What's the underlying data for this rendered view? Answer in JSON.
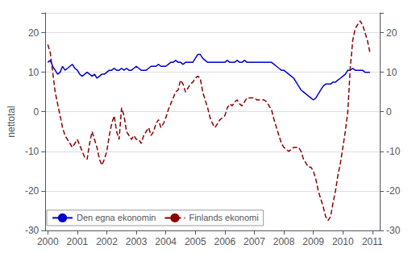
{
  "chart_data": {
    "type": "line",
    "ylabel": "nettotal",
    "xlim": [
      1999.917,
      2011.25
    ],
    "xticks": [
      2000,
      2001,
      2002,
      2003,
      2004,
      2005,
      2006,
      2007,
      2008,
      2009,
      2010,
      2011
    ],
    "ylim": [
      -30,
      25
    ],
    "yticks": [
      -30,
      -20,
      -10,
      0,
      10,
      20
    ],
    "y2lim": [
      -30,
      25
    ],
    "y2ticks": [
      -30,
      -20,
      -10,
      0,
      10,
      20
    ],
    "grid": true,
    "legend": "lower left",
    "x": [
      2000.0,
      2000.083,
      2000.167,
      2000.25,
      2000.333,
      2000.417,
      2000.5,
      2000.583,
      2000.667,
      2000.75,
      2000.833,
      2000.917,
      2001.0,
      2001.083,
      2001.167,
      2001.25,
      2001.333,
      2001.417,
      2001.5,
      2001.583,
      2001.667,
      2001.75,
      2001.833,
      2001.917,
      2002.0,
      2002.083,
      2002.167,
      2002.25,
      2002.333,
      2002.417,
      2002.5,
      2002.583,
      2002.667,
      2002.75,
      2002.833,
      2002.917,
      2003.0,
      2003.083,
      2003.167,
      2003.25,
      2003.333,
      2003.417,
      2003.5,
      2003.583,
      2003.667,
      2003.75,
      2003.833,
      2003.917,
      2004.0,
      2004.083,
      2004.167,
      2004.25,
      2004.333,
      2004.417,
      2004.5,
      2004.583,
      2004.667,
      2004.75,
      2004.833,
      2004.917,
      2005.0,
      2005.083,
      2005.167,
      2005.25,
      2005.333,
      2005.417,
      2005.5,
      2005.583,
      2005.667,
      2005.75,
      2005.833,
      2005.917,
      2006.0,
      2006.083,
      2006.167,
      2006.25,
      2006.333,
      2006.417,
      2006.5,
      2006.583,
      2006.667,
      2006.75,
      2006.833,
      2006.917,
      2007.0,
      2007.083,
      2007.167,
      2007.25,
      2007.333,
      2007.417,
      2007.5,
      2007.583,
      2007.667,
      2007.75,
      2007.833,
      2007.917,
      2008.0,
      2008.083,
      2008.167,
      2008.25,
      2008.333,
      2008.417,
      2008.5,
      2008.583,
      2008.667,
      2008.75,
      2008.833,
      2008.917,
      2009.0,
      2009.083,
      2009.167,
      2009.25,
      2009.333,
      2009.417,
      2009.5,
      2009.583,
      2009.667,
      2009.75,
      2009.833,
      2009.917,
      2010.0,
      2010.083,
      2010.167,
      2010.25,
      2010.333,
      2010.417,
      2010.5,
      2010.583,
      2010.667,
      2010.75,
      2010.833,
      2010.917
    ],
    "series": [
      {
        "name": "Den egna ekonomin",
        "color": "#0000cc",
        "line_style": "solid",
        "values": [
          12.5,
          13.0,
          11.5,
          10.5,
          9.5,
          10.0,
          11.5,
          10.5,
          11.0,
          11.5,
          12.0,
          11.0,
          10.5,
          9.5,
          9.0,
          9.5,
          10.0,
          9.5,
          9.0,
          9.5,
          8.5,
          9.0,
          9.5,
          9.5,
          10.0,
          10.5,
          10.5,
          11.0,
          10.5,
          10.5,
          11.0,
          10.5,
          11.0,
          10.5,
          10.5,
          11.0,
          11.5,
          11.0,
          10.5,
          10.5,
          10.5,
          11.0,
          11.5,
          11.5,
          11.5,
          12.0,
          11.5,
          11.5,
          11.5,
          12.0,
          12.5,
          12.5,
          13.0,
          12.5,
          12.5,
          12.0,
          12.5,
          12.5,
          12.5,
          12.5,
          13.5,
          14.5,
          14.5,
          13.5,
          13.0,
          12.5,
          12.5,
          12.5,
          12.5,
          12.5,
          12.5,
          12.5,
          12.5,
          13.0,
          12.5,
          12.5,
          12.5,
          13.0,
          12.5,
          12.5,
          13.0,
          12.5,
          12.5,
          12.5,
          12.5,
          12.5,
          12.5,
          12.5,
          12.5,
          12.5,
          12.5,
          12.5,
          12.0,
          11.5,
          11.0,
          10.5,
          10.5,
          10.0,
          9.5,
          9.0,
          8.5,
          7.5,
          6.5,
          5.5,
          5.0,
          4.5,
          4.0,
          3.5,
          3.0,
          3.5,
          4.5,
          5.5,
          6.5,
          7.0,
          7.0,
          7.0,
          7.5,
          7.5,
          8.0,
          8.5,
          9.0,
          9.5,
          10.5,
          10.5,
          11.0,
          10.5,
          10.5,
          10.5,
          10.5,
          10.0,
          10.0,
          10.0
        ]
      },
      {
        "name": "Finlands ekonomi",
        "color": "#8b0000",
        "line_style": "dashed",
        "values": [
          17.0,
          15.0,
          10.0,
          5.0,
          2.0,
          -1.0,
          -4.0,
          -6.0,
          -7.0,
          -8.0,
          -9.0,
          -8.0,
          -7.0,
          -8.5,
          -10.0,
          -11.5,
          -12.0,
          -8.0,
          -5.0,
          -7.0,
          -9.0,
          -12.0,
          -13.5,
          -12.0,
          -10.0,
          -6.0,
          -3.0,
          -1.0,
          -5.0,
          -7.0,
          1.0,
          -1.0,
          -5.0,
          -6.0,
          -7.0,
          -6.0,
          -7.0,
          -7.0,
          -8.0,
          -6.0,
          -5.0,
          -4.0,
          -6.0,
          -5.0,
          -3.0,
          -2.0,
          -4.0,
          -3.0,
          -1.5,
          0.5,
          2.0,
          3.5,
          5.0,
          5.5,
          8.0,
          7.0,
          5.0,
          6.0,
          7.0,
          7.5,
          8.5,
          9.0,
          8.5,
          5.0,
          3.0,
          1.0,
          -1.5,
          -3.0,
          -4.0,
          -3.0,
          -2.0,
          -1.5,
          -1.0,
          1.0,
          2.0,
          1.5,
          2.5,
          3.0,
          2.0,
          1.5,
          2.5,
          3.5,
          3.5,
          3.5,
          3.5,
          3.0,
          3.0,
          3.0,
          3.0,
          2.5,
          1.5,
          0.5,
          -2.0,
          -4.0,
          -6.0,
          -8.0,
          -9.0,
          -9.5,
          -10.0,
          -9.5,
          -9.0,
          -9.0,
          -9.0,
          -10.0,
          -12.0,
          -13.0,
          -14.0,
          -14.0,
          -15.0,
          -17.0,
          -20.0,
          -22.0,
          -24.0,
          -26.5,
          -27.5,
          -26.5,
          -23.0,
          -20.0,
          -16.0,
          -13.0,
          -9.0,
          -5.0,
          0.0,
          11.0,
          18.0,
          21.0,
          22.0,
          23.0,
          22.0,
          20.0,
          18.0,
          15.0
        ]
      }
    ]
  }
}
